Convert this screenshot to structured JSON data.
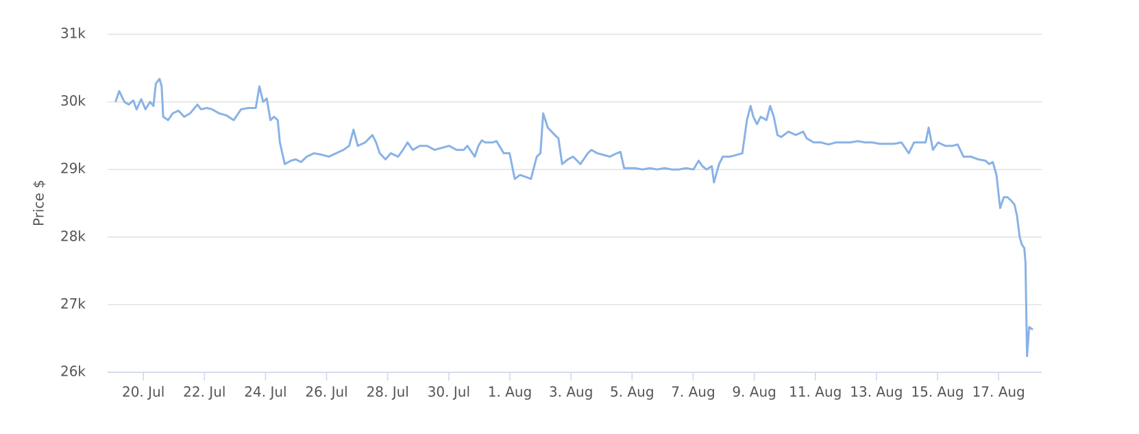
{
  "chart_data": {
    "type": "line",
    "y_label": "Price $",
    "color": "#88b2e6",
    "grid": true,
    "xlim": [
      18.83,
      49.41
    ],
    "xticks": [
      {
        "value": 20,
        "label": "20. Jul"
      },
      {
        "value": 22,
        "label": "22. Jul"
      },
      {
        "value": 24,
        "label": "24. Jul"
      },
      {
        "value": 26,
        "label": "26. Jul"
      },
      {
        "value": 28,
        "label": "28. Jul"
      },
      {
        "value": 30,
        "label": "30. Jul"
      },
      {
        "value": 32,
        "label": "1. Aug"
      },
      {
        "value": 34,
        "label": "3. Aug"
      },
      {
        "value": 36,
        "label": "5. Aug"
      },
      {
        "value": 38,
        "label": "7. Aug"
      },
      {
        "value": 40,
        "label": "9. Aug"
      },
      {
        "value": 42,
        "label": "11. Aug"
      },
      {
        "value": 44,
        "label": "13. Aug"
      },
      {
        "value": 46,
        "label": "15. Aug"
      },
      {
        "value": 48,
        "label": "17. Aug"
      }
    ],
    "ylim": [
      26000,
      31000
    ],
    "yticks": [
      {
        "value": 26000,
        "label": "26k"
      },
      {
        "value": 27000,
        "label": "27k"
      },
      {
        "value": 28000,
        "label": "28k"
      },
      {
        "value": 29000,
        "label": "29k"
      },
      {
        "value": 30000,
        "label": "30k"
      },
      {
        "value": 31000,
        "label": "31k"
      }
    ],
    "x": [
      19.09,
      19.21,
      19.38,
      19.52,
      19.67,
      19.78,
      19.93,
      20.07,
      20.22,
      20.33,
      20.41,
      20.53,
      20.6,
      20.65,
      20.81,
      20.96,
      21.15,
      21.34,
      21.53,
      21.77,
      21.89,
      22.08,
      22.25,
      22.48,
      22.72,
      22.96,
      23.2,
      23.44,
      23.68,
      23.8,
      23.92,
      24.04,
      24.16,
      24.28,
      24.4,
      24.47,
      24.63,
      24.83,
      24.99,
      25.16,
      25.35,
      25.59,
      25.83,
      26.07,
      26.31,
      26.55,
      26.74,
      26.88,
      27.02,
      27.26,
      27.5,
      27.62,
      27.74,
      27.93,
      28.1,
      28.34,
      28.5,
      28.65,
      28.82,
      29.05,
      29.29,
      29.53,
      29.77,
      30.01,
      30.25,
      30.49,
      30.61,
      30.85,
      30.97,
      31.08,
      31.2,
      31.44,
      31.56,
      31.8,
      31.99,
      32.16,
      32.33,
      32.52,
      32.69,
      32.88,
      33.0,
      33.09,
      33.24,
      33.47,
      33.59,
      33.71,
      33.9,
      34.07,
      34.31,
      34.55,
      34.67,
      34.86,
      35.03,
      35.27,
      35.5,
      35.62,
      35.74,
      35.86,
      36.1,
      36.34,
      36.58,
      36.82,
      37.06,
      37.3,
      37.53,
      37.77,
      38.01,
      38.18,
      38.3,
      38.44,
      38.61,
      38.68,
      38.85,
      38.97,
      39.21,
      39.45,
      39.61,
      39.76,
      39.88,
      39.97,
      40.09,
      40.21,
      40.4,
      40.52,
      40.64,
      40.76,
      40.88,
      41.12,
      41.36,
      41.6,
      41.72,
      41.95,
      42.19,
      42.43,
      42.67,
      42.91,
      43.15,
      43.39,
      43.63,
      43.87,
      44.1,
      44.34,
      44.58,
      44.82,
      45.06,
      45.23,
      45.47,
      45.61,
      45.71,
      45.85,
      46.02,
      46.25,
      46.49,
      46.66,
      46.85,
      47.09,
      47.33,
      47.57,
      47.69,
      47.81,
      47.93,
      48.05,
      48.17,
      48.29,
      48.41,
      48.52,
      48.6,
      48.69,
      48.76,
      48.84,
      48.88,
      48.93,
      49.0,
      49.12
    ],
    "values": [
      30000,
      30160,
      30000,
      29960,
      30020,
      29890,
      30040,
      29890,
      30000,
      29940,
      30270,
      30340,
      30230,
      29780,
      29730,
      29830,
      29870,
      29780,
      29830,
      29960,
      29890,
      29910,
      29890,
      29830,
      29800,
      29730,
      29890,
      29910,
      29910,
      30230,
      30000,
      30050,
      29730,
      29780,
      29730,
      29400,
      29080,
      29130,
      29150,
      29110,
      29190,
      29240,
      29220,
      29190,
      29240,
      29290,
      29350,
      29590,
      29350,
      29400,
      29510,
      29400,
      29240,
      29150,
      29240,
      29190,
      29290,
      29400,
      29290,
      29350,
      29350,
      29290,
      29320,
      29350,
      29290,
      29290,
      29350,
      29190,
      29350,
      29430,
      29400,
      29400,
      29420,
      29240,
      29240,
      28860,
      28920,
      28890,
      28860,
      29190,
      29240,
      29830,
      29620,
      29510,
      29460,
      29080,
      29150,
      29190,
      29080,
      29240,
      29290,
      29240,
      29220,
      29190,
      29240,
      29260,
      29020,
      29020,
      29020,
      29000,
      29020,
      29000,
      29020,
      29000,
      29000,
      29020,
      29000,
      29130,
      29050,
      29000,
      29050,
      28810,
      29080,
      29190,
      29190,
      29220,
      29240,
      29730,
      29940,
      29780,
      29670,
      29780,
      29730,
      29940,
      29780,
      29510,
      29480,
      29560,
      29510,
      29560,
      29460,
      29400,
      29400,
      29370,
      29400,
      29400,
      29400,
      29420,
      29400,
      29400,
      29380,
      29380,
      29380,
      29400,
      29240,
      29400,
      29400,
      29400,
      29620,
      29290,
      29400,
      29350,
      29350,
      29370,
      29190,
      29190,
      29150,
      29130,
      29080,
      29110,
      28920,
      28430,
      28590,
      28590,
      28540,
      28480,
      28320,
      28000,
      27890,
      27840,
      27620,
      26240,
      26670,
      26630
    ]
  }
}
